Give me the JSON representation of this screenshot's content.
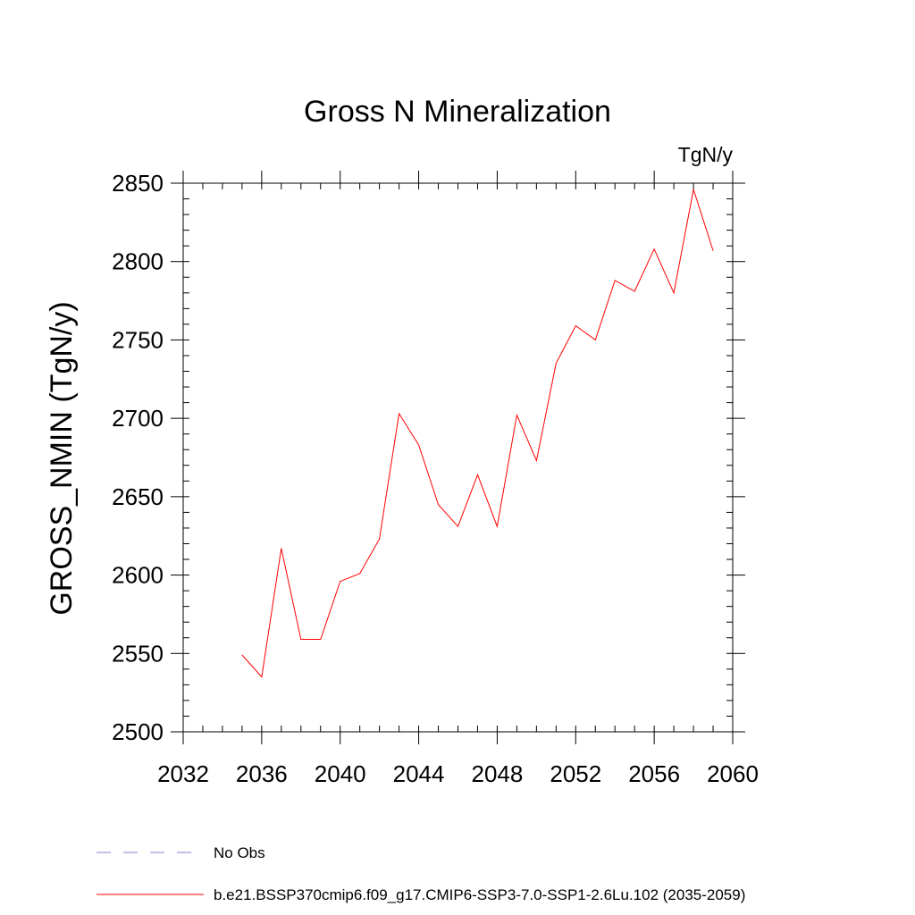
{
  "chart_data": {
    "type": "line",
    "title": "Gross N Mineralization",
    "units_label": "TgN/y",
    "ylabel": "GROSS_NMIN  (TgN/y)",
    "xlabel": "",
    "xlim": [
      2032,
      2060
    ],
    "ylim": [
      2500,
      2850
    ],
    "x_ticks": [
      2032,
      2036,
      2040,
      2044,
      2048,
      2052,
      2056,
      2060
    ],
    "y_ticks": [
      2500,
      2550,
      2600,
      2650,
      2700,
      2750,
      2800,
      2850
    ],
    "x_minor_step": 1,
    "y_minor_step": 10,
    "grid": false,
    "legend_position": "bottom-left",
    "series": [
      {
        "name": "b.e21.BSSP370cmip6.f09_g17.CMIP6-SSP3-7.0-SSP1-2.6Lu.102 (2035-2059)",
        "color": "#ff0000",
        "style": "solid",
        "x": [
          2035,
          2036,
          2037,
          2038,
          2039,
          2040,
          2041,
          2042,
          2043,
          2044,
          2045,
          2046,
          2047,
          2048,
          2049,
          2050,
          2051,
          2052,
          2053,
          2054,
          2055,
          2056,
          2057,
          2058,
          2059
        ],
        "values": [
          2549,
          2535,
          2617,
          2559,
          2559,
          2596,
          2601,
          2623,
          2703,
          2683,
          2645,
          2631,
          2664,
          2631,
          2702,
          2673,
          2735,
          2759,
          2750,
          2788,
          2781,
          2808,
          2780,
          2846,
          2807
        ]
      }
    ],
    "legend": [
      {
        "label": "No Obs",
        "color": "#8c7fd6",
        "style": "dashed"
      },
      {
        "label": "b.e21.BSSP370cmip6.f09_g17.CMIP6-SSP3-7.0-SSP1-2.6Lu.102 (2035-2059)",
        "color": "#ff0000",
        "style": "solid"
      }
    ]
  }
}
